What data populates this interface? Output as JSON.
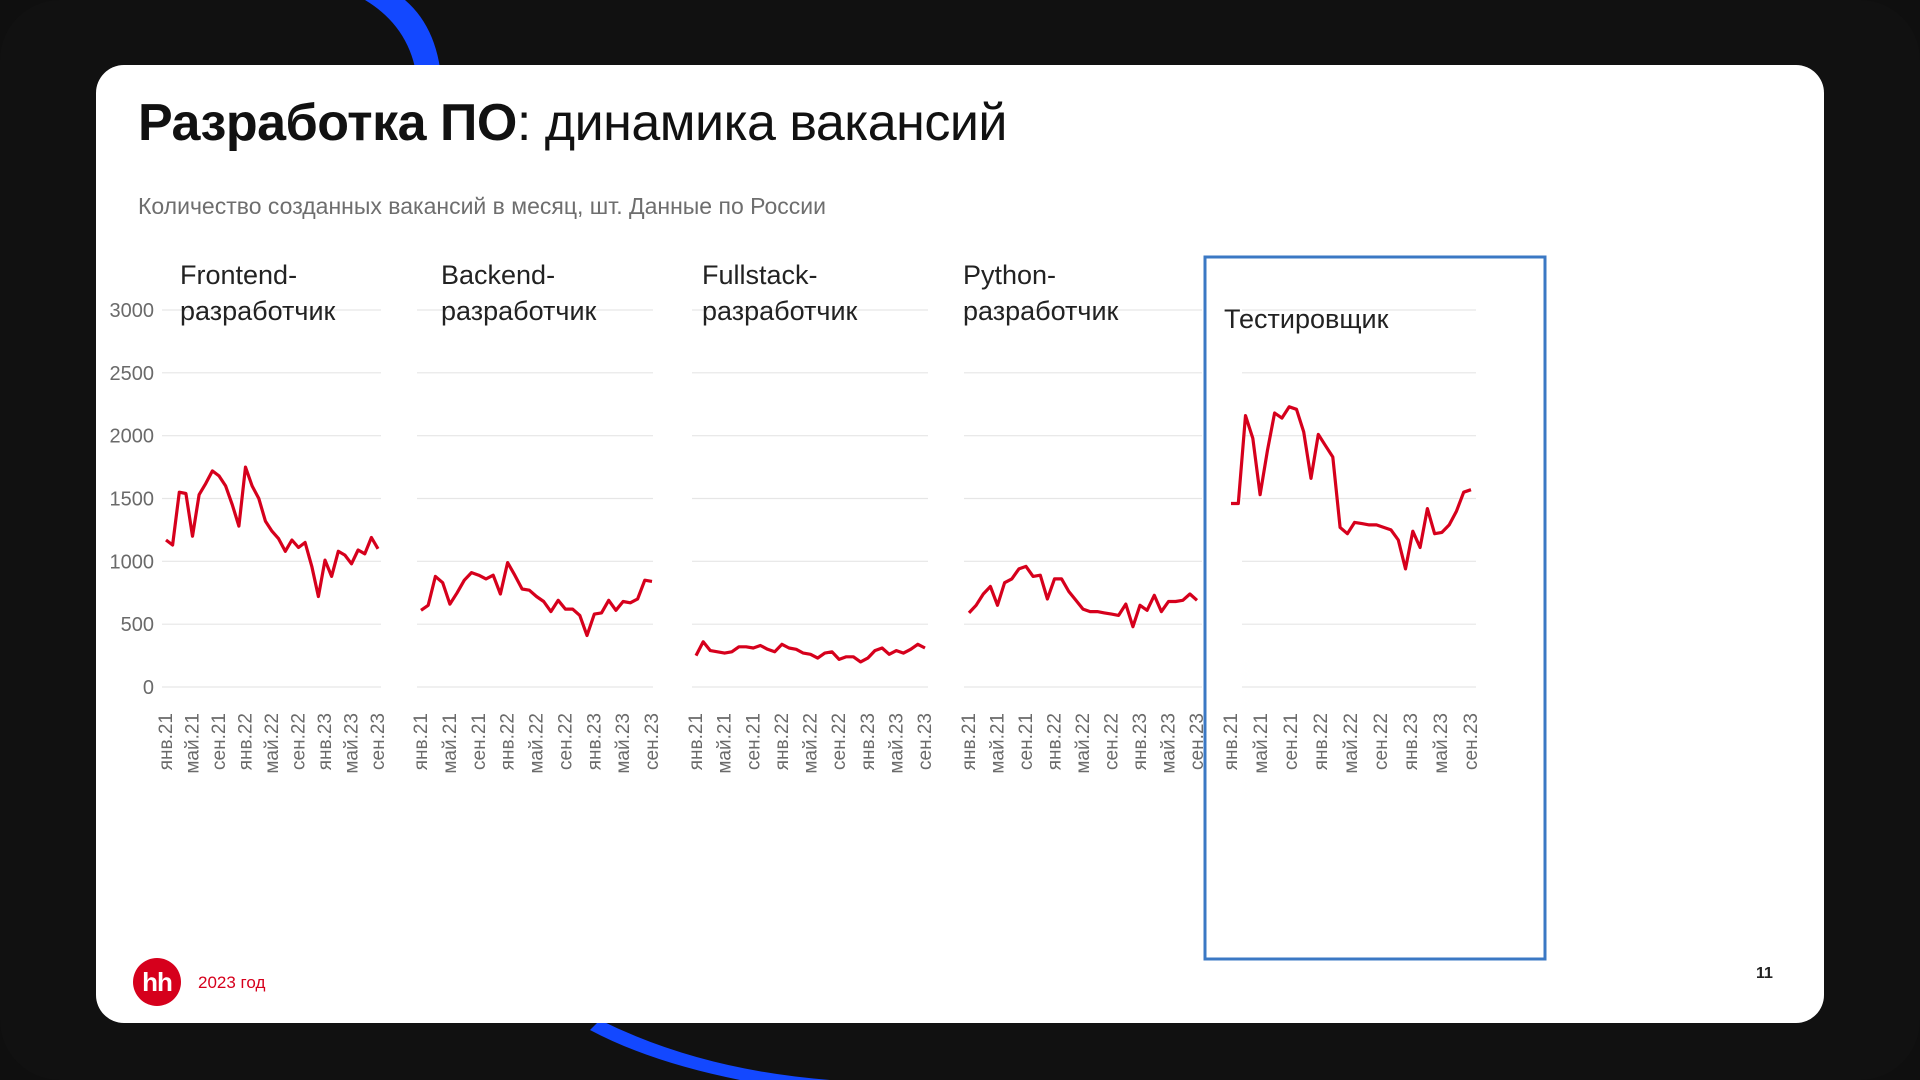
{
  "slide": {
    "title_bold": "Разработка ПО",
    "title_rest": ": динамика вакансий",
    "subtitle": "Количество созданных вакансий в месяц, шт. Данные по России",
    "brand": "hh",
    "year": "2023 год",
    "page_number": "11"
  },
  "colors": {
    "line": "#d6001c",
    "highlight_border": "#3b78c4",
    "grid": "#e6e6e6",
    "accent_stripe": "#1348ff"
  },
  "chart_data": [
    {
      "type": "line",
      "title_lines": [
        "Frontend-",
        "разработчик"
      ],
      "highlighted": false,
      "ylim": [
        0,
        3000
      ],
      "yticks": [
        "3000",
        "2500",
        "2000",
        "1500",
        "1000",
        "500",
        "0"
      ],
      "xticks": [
        "янв.21",
        "май.21",
        "сен.21",
        "янв.22",
        "май.22",
        "сен.22",
        "янв.23",
        "май.23",
        "сен.23"
      ],
      "values": [
        1170,
        1130,
        1550,
        1540,
        1200,
        1530,
        1620,
        1720,
        1680,
        1600,
        1450,
        1280,
        1750,
        1600,
        1500,
        1320,
        1240,
        1180,
        1080,
        1170,
        1110,
        1150,
        960,
        720,
        1010,
        880,
        1080,
        1050,
        980,
        1090,
        1060,
        1190,
        1100
      ]
    },
    {
      "type": "line",
      "title_lines": [
        "Backend-",
        "разработчик"
      ],
      "highlighted": false,
      "ylim": [
        0,
        3000
      ],
      "yticks": [],
      "xticks": [
        "янв.21",
        "май.21",
        "сен.21",
        "янв.22",
        "май.22",
        "сен.22",
        "янв.23",
        "май.23",
        "сен.23"
      ],
      "values": [
        610,
        650,
        880,
        830,
        660,
        750,
        850,
        910,
        890,
        860,
        890,
        740,
        990,
        890,
        780,
        770,
        720,
        680,
        600,
        690,
        620,
        620,
        570,
        410,
        580,
        590,
        690,
        610,
        680,
        670,
        700,
        850,
        840
      ]
    },
    {
      "type": "line",
      "title_lines": [
        "Fullstack-",
        "разработчик"
      ],
      "highlighted": false,
      "ylim": [
        0,
        3000
      ],
      "yticks": [],
      "xticks": [
        "янв.21",
        "май.21",
        "сен.21",
        "янв.22",
        "май.22",
        "сен.22",
        "янв.23",
        "май.23",
        "сен.23"
      ],
      "values": [
        250,
        360,
        290,
        280,
        270,
        280,
        320,
        320,
        310,
        330,
        300,
        280,
        340,
        310,
        300,
        270,
        260,
        230,
        270,
        280,
        220,
        240,
        240,
        200,
        230,
        290,
        310,
        260,
        290,
        270,
        300,
        340,
        310
      ]
    },
    {
      "type": "line",
      "title_lines": [
        "Python-",
        "разработчик"
      ],
      "highlighted": false,
      "ylim": [
        0,
        3000
      ],
      "yticks": [],
      "xticks": [
        "янв.21",
        "май.21",
        "сен.21",
        "янв.22",
        "май.22",
        "сен.22",
        "янв.23",
        "май.23",
        "сен.23"
      ],
      "values": [
        590,
        650,
        740,
        800,
        650,
        830,
        860,
        940,
        960,
        880,
        890,
        700,
        860,
        860,
        760,
        690,
        620,
        600,
        600,
        590,
        580,
        570,
        660,
        480,
        650,
        610,
        730,
        600,
        680,
        680,
        690,
        740,
        690
      ]
    },
    {
      "type": "line",
      "title_lines": [
        "Тестировщик"
      ],
      "highlighted": true,
      "ylim": [
        0,
        3000
      ],
      "yticks": [],
      "xticks": [
        "янв.21",
        "май.21",
        "сен.21",
        "янв.22",
        "май.22",
        "сен.22",
        "янв.23",
        "май.23",
        "сен.23"
      ],
      "values": [
        1460,
        1460,
        2160,
        1980,
        1530,
        1880,
        2180,
        2140,
        2230,
        2210,
        2030,
        1660,
        2010,
        1920,
        1830,
        1270,
        1220,
        1310,
        1300,
        1290,
        1290,
        1270,
        1250,
        1170,
        940,
        1240,
        1110,
        1420,
        1220,
        1230,
        1290,
        1400,
        1550,
        1570
      ]
    }
  ]
}
